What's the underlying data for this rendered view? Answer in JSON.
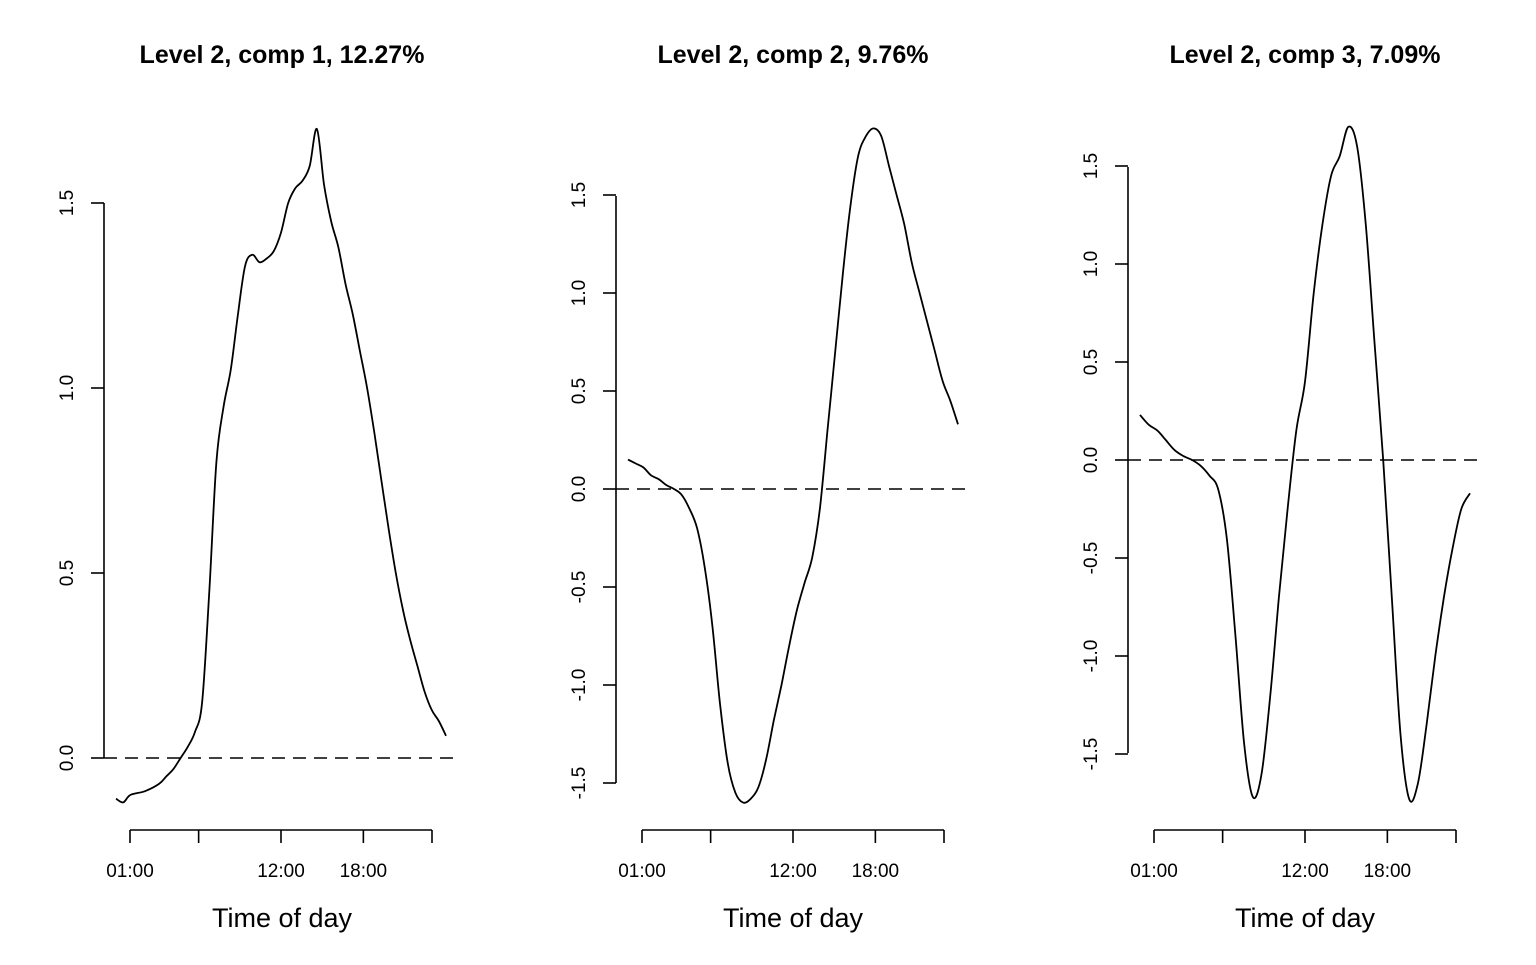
{
  "chart_data": [
    {
      "type": "line",
      "title": "Level 2, comp 1, 12.27%",
      "xlabel": "Time of day",
      "ylabel": "",
      "x_tick_labels": [
        "01:00",
        "",
        "12:00",
        "18:00",
        ""
      ],
      "x_tick_values": [
        1,
        6,
        12,
        18,
        23
      ],
      "y_tick_labels": [
        "0.0",
        "0.5",
        "1.0",
        "1.5"
      ],
      "y_tick_values": [
        0.0,
        0.5,
        1.0,
        1.5
      ],
      "series": [
        {
          "x": [
            0,
            0.5,
            1,
            2,
            3,
            3.5,
            4,
            4.5,
            5,
            5.5,
            6,
            6.5,
            7,
            7.5,
            8,
            8.5,
            9,
            9.5,
            10,
            10.5,
            11,
            11.5,
            12,
            12.5,
            13,
            13.5,
            14,
            14.5,
            15,
            15.5,
            16,
            16.5,
            17,
            17.5,
            18,
            18.5,
            19,
            19.5,
            20,
            20.5,
            21,
            21.5,
            22,
            22.5,
            23,
            23.5,
            24
          ],
          "y": [
            -0.11,
            -0.12,
            -0.1,
            -0.09,
            -0.07,
            -0.05,
            -0.03,
            0.0,
            0.03,
            0.07,
            0.15,
            0.45,
            0.8,
            0.95,
            1.05,
            1.2,
            1.33,
            1.36,
            1.34,
            1.35,
            1.37,
            1.42,
            1.5,
            1.54,
            1.56,
            1.6,
            1.7,
            1.55,
            1.45,
            1.38,
            1.28,
            1.2,
            1.1,
            1.0,
            0.88,
            0.75,
            0.62,
            0.5,
            0.4,
            0.32,
            0.25,
            0.18,
            0.13,
            0.1,
            0.06,
            null,
            null
          ]
        }
      ],
      "zero_line": 0.0
    },
    {
      "type": "line",
      "title": "Level 2, comp 2, 9.76%",
      "xlabel": "Time of day",
      "ylabel": "",
      "x_tick_labels": [
        "01:00",
        "",
        "12:00",
        "18:00",
        ""
      ],
      "x_tick_values": [
        1,
        6,
        12,
        18,
        23
      ],
      "y_tick_labels": [
        "-1.5",
        "-1.0",
        "-0.5",
        "0.0",
        "0.5",
        "1.0",
        "1.5"
      ],
      "y_tick_values": [
        -1.5,
        -1.0,
        -0.5,
        0.0,
        0.5,
        1.0,
        1.5
      ],
      "series": [
        {
          "x": [
            0,
            0.5,
            1,
            1.5,
            2,
            2.5,
            3,
            3.5,
            4,
            4.5,
            5,
            5.5,
            6,
            6.5,
            7,
            7.5,
            8,
            8.5,
            9,
            9.5,
            10,
            10.5,
            11,
            11.5,
            12,
            12.5,
            13,
            13.5,
            14,
            14.5,
            15,
            15.5,
            16,
            16.5,
            17,
            17.5,
            18,
            18.5,
            19,
            19.5,
            20,
            20.5,
            21,
            21.5,
            22,
            22.5,
            23
          ],
          "y": [
            0.15,
            0.13,
            0.11,
            0.07,
            0.05,
            0.02,
            0.0,
            -0.03,
            -0.1,
            -0.2,
            -0.4,
            -0.7,
            -1.1,
            -1.4,
            -1.55,
            -1.6,
            -1.58,
            -1.52,
            -1.38,
            -1.18,
            -1.0,
            -0.8,
            -0.62,
            -0.48,
            -0.35,
            -0.1,
            0.3,
            0.7,
            1.1,
            1.45,
            1.7,
            1.8,
            1.84,
            1.8,
            1.65,
            1.5,
            1.35,
            1.15,
            1.0,
            0.85,
            0.7,
            0.55,
            0.45,
            0.33,
            null,
            null,
            null
          ]
        }
      ],
      "zero_line": 0.0
    },
    {
      "type": "line",
      "title": "Level 2, comp 3, 7.09%",
      "xlabel": "Time of day",
      "ylabel": "",
      "x_tick_labels": [
        "01:00",
        "",
        "12:00",
        "18:00",
        ""
      ],
      "x_tick_values": [
        1,
        6,
        12,
        18,
        23
      ],
      "y_tick_labels": [
        "-1.5",
        "-1.0",
        "-0.5",
        "0.0",
        "0.5",
        "1.0",
        "1.5"
      ],
      "y_tick_values": [
        -1.5,
        -1.0,
        -0.5,
        0.0,
        0.5,
        1.0,
        1.5
      ],
      "series": [
        {
          "x": [
            0,
            0.5,
            1,
            1.5,
            2,
            2.5,
            3,
            3.5,
            4,
            4.5,
            5,
            5.5,
            6,
            6.5,
            7,
            7.5,
            8,
            8.5,
            9,
            9.5,
            10,
            10.5,
            11,
            11.5,
            12,
            12.5,
            13,
            13.5,
            14,
            14.5,
            15,
            15.5,
            16,
            16.5,
            17,
            17.5,
            18,
            18.5,
            19,
            19.5,
            20,
            20.5,
            21,
            21.5,
            22,
            22.5,
            23
          ],
          "y": [
            0.23,
            0.18,
            0.15,
            0.1,
            0.05,
            0.02,
            0.0,
            -0.03,
            -0.08,
            -0.15,
            -0.4,
            -0.9,
            -1.45,
            -1.72,
            -1.6,
            -1.2,
            -0.7,
            -0.25,
            0.15,
            0.4,
            0.85,
            1.2,
            1.45,
            1.55,
            1.7,
            1.6,
            1.2,
            0.6,
            0.0,
            -0.7,
            -1.4,
            -1.73,
            -1.65,
            -1.35,
            -1.0,
            -0.7,
            -0.45,
            -0.25,
            -0.17,
            null,
            null,
            null,
            null,
            null,
            null,
            null,
            null
          ]
        }
      ],
      "zero_line": 0.0
    }
  ]
}
